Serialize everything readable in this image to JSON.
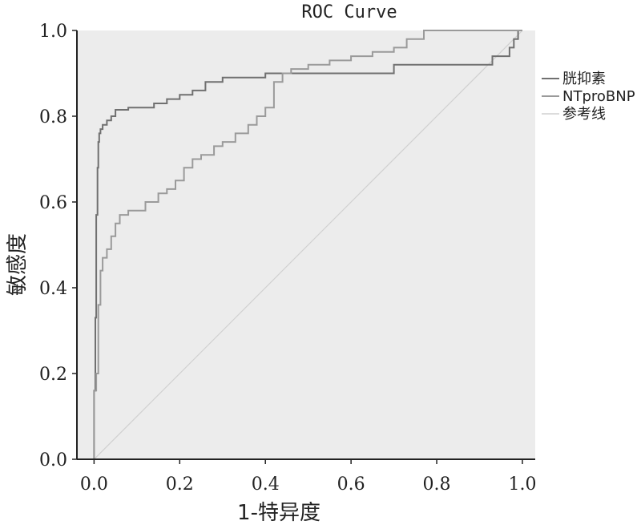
{
  "chart_data": {
    "type": "line",
    "title": "ROC Curve",
    "xlabel": "1-特异度",
    "ylabel": "敏感度",
    "xlim": [
      -0.04,
      1.03
    ],
    "ylim": [
      0,
      1.0
    ],
    "xticks": [
      "0.0",
      "0.2",
      "0.4",
      "0.6",
      "0.8",
      "1.0"
    ],
    "xtick_values": [
      0.0,
      0.2,
      0.4,
      0.6,
      0.8,
      1.0
    ],
    "yticks": [
      "0.0",
      "0.2",
      "0.4",
      "0.6",
      "0.8",
      "1.0"
    ],
    "ytick_values": [
      0.0,
      0.2,
      0.4,
      0.6,
      0.8,
      1.0
    ],
    "grid": false,
    "background": "#ececec",
    "legend_position": "right",
    "series": [
      {
        "name": "胱抑素",
        "color": "#707070",
        "x": [
          0.0,
          0.0,
          0.003,
          0.003,
          0.005,
          0.005,
          0.008,
          0.008,
          0.01,
          0.01,
          0.012,
          0.012,
          0.015,
          0.015,
          0.02,
          0.02,
          0.03,
          0.03,
          0.04,
          0.04,
          0.05,
          0.05,
          0.08,
          0.08,
          0.14,
          0.14,
          0.17,
          0.17,
          0.2,
          0.2,
          0.23,
          0.23,
          0.26,
          0.26,
          0.3,
          0.3,
          0.4,
          0.4,
          0.7,
          0.7,
          0.93,
          0.93,
          0.97,
          0.97,
          0.98,
          0.98,
          0.99,
          0.99,
          1.0
        ],
        "y": [
          0.0,
          0.16,
          0.16,
          0.33,
          0.33,
          0.57,
          0.57,
          0.68,
          0.68,
          0.74,
          0.74,
          0.76,
          0.76,
          0.77,
          0.77,
          0.78,
          0.78,
          0.79,
          0.79,
          0.8,
          0.8,
          0.815,
          0.815,
          0.82,
          0.82,
          0.83,
          0.83,
          0.84,
          0.84,
          0.85,
          0.85,
          0.86,
          0.86,
          0.88,
          0.88,
          0.89,
          0.89,
          0.9,
          0.9,
          0.92,
          0.92,
          0.94,
          0.94,
          0.96,
          0.96,
          0.98,
          0.98,
          1.0,
          1.0
        ]
      },
      {
        "name": "NTproBNP",
        "color": "#9a9a9a",
        "x": [
          0.0,
          0.0,
          0.005,
          0.005,
          0.01,
          0.01,
          0.015,
          0.015,
          0.02,
          0.02,
          0.03,
          0.03,
          0.04,
          0.04,
          0.05,
          0.05,
          0.06,
          0.06,
          0.08,
          0.08,
          0.12,
          0.12,
          0.15,
          0.15,
          0.17,
          0.17,
          0.19,
          0.19,
          0.21,
          0.21,
          0.23,
          0.23,
          0.25,
          0.25,
          0.28,
          0.28,
          0.3,
          0.3,
          0.33,
          0.33,
          0.36,
          0.36,
          0.38,
          0.38,
          0.4,
          0.4,
          0.42,
          0.42,
          0.44,
          0.44,
          0.46,
          0.46,
          0.5,
          0.5,
          0.55,
          0.55,
          0.6,
          0.6,
          0.65,
          0.65,
          0.7,
          0.7,
          0.73,
          0.73,
          0.77,
          0.77,
          1.0
        ],
        "y": [
          0.0,
          0.16,
          0.16,
          0.2,
          0.2,
          0.36,
          0.36,
          0.44,
          0.44,
          0.47,
          0.47,
          0.49,
          0.49,
          0.52,
          0.52,
          0.55,
          0.55,
          0.57,
          0.57,
          0.58,
          0.58,
          0.6,
          0.6,
          0.62,
          0.62,
          0.63,
          0.63,
          0.65,
          0.65,
          0.68,
          0.68,
          0.7,
          0.7,
          0.71,
          0.71,
          0.73,
          0.73,
          0.74,
          0.74,
          0.76,
          0.76,
          0.78,
          0.78,
          0.8,
          0.8,
          0.82,
          0.82,
          0.88,
          0.88,
          0.9,
          0.9,
          0.91,
          0.91,
          0.92,
          0.92,
          0.93,
          0.93,
          0.94,
          0.94,
          0.95,
          0.95,
          0.96,
          0.96,
          0.98,
          0.98,
          1.0,
          1.0
        ]
      },
      {
        "name": "参考线",
        "color": "#d0d0d0",
        "x": [
          0.0,
          1.0
        ],
        "y": [
          0.0,
          1.0
        ]
      }
    ]
  }
}
